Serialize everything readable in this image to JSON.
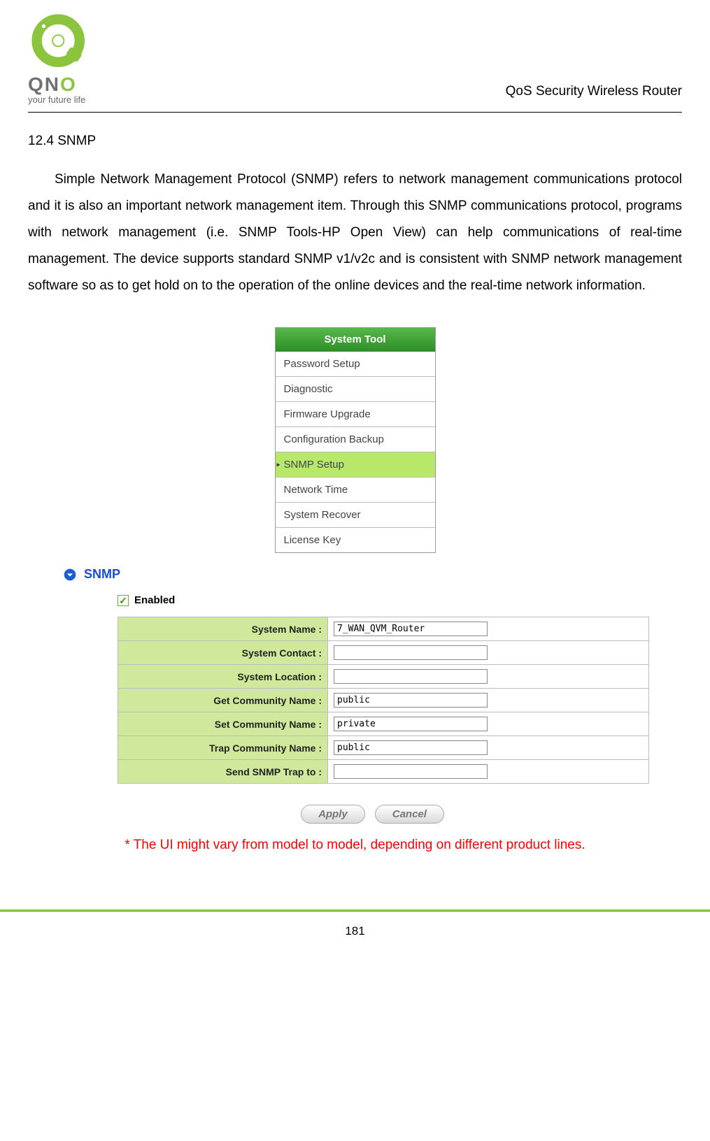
{
  "header": {
    "logo_text_1": "Q",
    "logo_text_2": "N",
    "logo_text_3": "O",
    "tagline": "your future life",
    "right_text": "QoS Security Wireless Router"
  },
  "section": {
    "title": "12.4 SNMP",
    "body": "Simple Network Management Protocol (SNMP) refers to network management communications protocol and it is also an important network management item. Through this SNMP communications protocol, programs with network management (i.e. SNMP Tools-HP Open View) can help communications of real-time management. The device supports standard SNMP v1/v2c and is consistent with SNMP network management software so as to get hold on to the operation of the online devices and the real-time network information."
  },
  "system_tool_menu": {
    "header": "System Tool",
    "items": [
      {
        "label": "Password Setup",
        "active": false
      },
      {
        "label": "Diagnostic",
        "active": false
      },
      {
        "label": "Firmware Upgrade",
        "active": false
      },
      {
        "label": "Configuration Backup",
        "active": false
      },
      {
        "label": "SNMP Setup",
        "active": true
      },
      {
        "label": "Network Time",
        "active": false
      },
      {
        "label": "System Recover",
        "active": false
      },
      {
        "label": "License Key",
        "active": false
      }
    ]
  },
  "snmp_panel": {
    "title": "SNMP",
    "enabled_label": "Enabled",
    "enabled_checked": true,
    "rows": [
      {
        "label": "System Name :",
        "value": "7_WAN_QVM_Router"
      },
      {
        "label": "System Contact :",
        "value": ""
      },
      {
        "label": "System Location :",
        "value": ""
      },
      {
        "label": "Get Community Name :",
        "value": "public"
      },
      {
        "label": "Set Community Name :",
        "value": "private"
      },
      {
        "label": "Trap Community Name :",
        "value": "public"
      },
      {
        "label": "Send SNMP Trap to :",
        "value": ""
      }
    ],
    "apply_label": "Apply",
    "cancel_label": "Cancel"
  },
  "note": {
    "text": "* The UI might vary from model to model, depending on different product lines.",
    "color": "#ff0000"
  },
  "page_number": "181",
  "colors": {
    "menu_header_bg": "#3fa63a",
    "menu_active_bg": "#b7e86a",
    "table_label_bg": "#cfe89c",
    "link_blue": "#1a4bd0",
    "note_red": "#ff0000",
    "logo_green": "#8bc53f"
  }
}
